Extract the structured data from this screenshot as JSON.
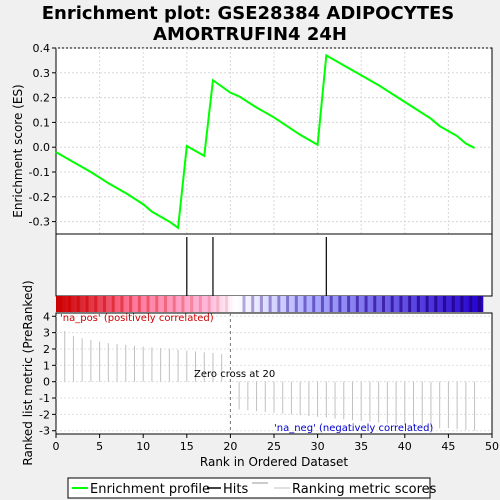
{
  "chart_data": {
    "type": "line",
    "title": "Enrichment plot: GSE28384 ADIPOCYTES AMORTRUFIN4 24H",
    "title_lines": [
      "Enrichment plot: GSE28384 ADIPOCYTES",
      "AMORTRUFIN4 24H"
    ],
    "es_panel": {
      "ylabel": "Enrichment score (ES)",
      "ylim": [
        -0.35,
        0.4
      ],
      "yticks": [
        0.4,
        0.3,
        0.2,
        0.1,
        0.0,
        -0.1,
        -0.2,
        -0.3
      ],
      "ytick_labels": [
        "0.4",
        "0.3",
        "0.2",
        "0.1",
        "0.0",
        "-0.1",
        "-0.2",
        "-0.3"
      ],
      "grid": true,
      "series": [
        {
          "name": "Enrichment profile",
          "color": "#00ff00",
          "x": [
            0,
            2,
            4,
            6,
            8,
            10,
            11,
            13,
            14,
            15,
            17,
            18,
            20,
            21,
            23,
            25,
            28,
            30,
            31,
            33,
            35,
            37,
            39,
            41,
            43,
            44,
            46,
            47,
            48
          ],
          "y": [
            -0.02,
            -0.06,
            -0.1,
            -0.145,
            -0.185,
            -0.23,
            -0.26,
            -0.3,
            -0.325,
            0.005,
            -0.035,
            0.27,
            0.22,
            0.205,
            0.16,
            0.12,
            0.05,
            0.01,
            0.37,
            0.33,
            0.29,
            0.25,
            0.205,
            0.16,
            0.115,
            0.085,
            0.045,
            0.015,
            -0.003
          ]
        }
      ]
    },
    "hits_panel": {
      "hits_x": [
        15,
        18,
        31
      ],
      "hit_color": "#000000"
    },
    "rank_bar": {
      "x_range": [
        0,
        49
      ],
      "colors": [
        "#cc0000",
        "#ffffff",
        "#ffbbdd",
        "#aaaaff",
        "#2200cc"
      ]
    },
    "metric_panel": {
      "ylabel": "Ranked list metric (PreRanked)",
      "ylim": [
        -3.2,
        4.2
      ],
      "yticks": [
        4,
        3,
        2,
        1,
        0,
        -1,
        -2,
        -3
      ],
      "ytick_labels": [
        "4",
        "3",
        "2",
        "1",
        "0",
        "-1",
        "-2",
        "-3"
      ],
      "line_color": "#c0c0c0",
      "x": [
        1,
        2,
        3,
        4,
        5,
        6,
        7,
        8,
        9,
        10,
        11,
        12,
        13,
        14,
        15,
        16,
        17,
        18,
        19,
        21,
        22,
        23,
        24,
        25,
        26,
        27,
        28,
        29,
        30,
        31,
        32,
        33,
        34,
        35,
        36,
        37,
        38,
        39,
        40,
        41,
        42,
        43,
        44,
        45,
        46,
        47,
        48
      ],
      "values": [
        3.1,
        2.8,
        2.65,
        2.55,
        2.45,
        2.35,
        2.3,
        2.25,
        2.2,
        2.15,
        2.1,
        2.05,
        2.0,
        1.95,
        1.9,
        1.85,
        1.8,
        1.75,
        1.7,
        -1.7,
        -1.75,
        -1.8,
        -1.85,
        -1.9,
        -1.95,
        -2.0,
        -2.05,
        -2.1,
        -2.15,
        -2.2,
        -2.25,
        -2.3,
        -2.35,
        -2.4,
        -2.45,
        -2.5,
        -2.55,
        -2.6,
        -2.65,
        -2.7,
        -2.75,
        -2.8,
        -2.85,
        -2.85,
        -2.9,
        -2.95,
        -3.0
      ],
      "zero_cross_x": 20,
      "zero_cross_label": "Zero cross at 20",
      "pos_label": "'na_pos' (positively correlated)",
      "pos_color": "#cc0000",
      "neg_label": "'na_neg' (negatively correlated)",
      "neg_color": "#0000cc"
    },
    "xaxis": {
      "label": "Rank in Ordered Dataset",
      "xlim": [
        0,
        50
      ],
      "ticks": [
        0,
        5,
        10,
        15,
        20,
        25,
        30,
        35,
        40,
        45,
        50
      ],
      "tick_labels": [
        "0",
        "5",
        "10",
        "15",
        "20",
        "25",
        "30",
        "35",
        "40",
        "45",
        "50"
      ]
    },
    "legend": {
      "position": "bottom",
      "entries": [
        {
          "label": "Enrichment profile",
          "color": "#00ff00"
        },
        {
          "label": "Hits",
          "color": "#000000"
        },
        {
          "label": "Ranking metric scores",
          "color": "#c0c0c0"
        }
      ]
    }
  }
}
